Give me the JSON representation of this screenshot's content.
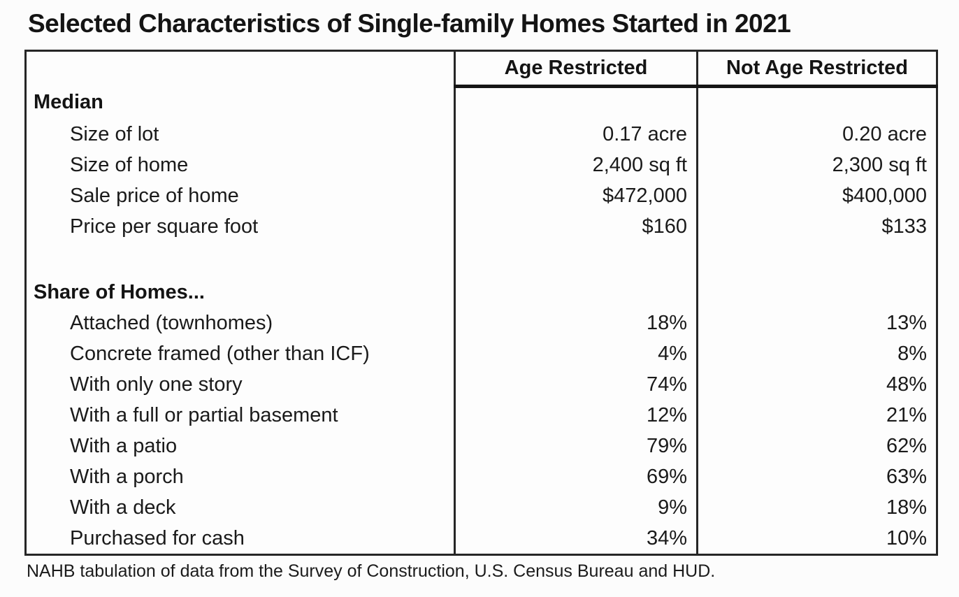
{
  "chart_data": {
    "type": "table",
    "title": "Selected Characteristics of Single-family Homes Started in 2021",
    "columns": [
      "",
      "Age Restricted",
      "Not Age Restricted"
    ],
    "rows": [
      {
        "kind": "section",
        "label": "Median",
        "age_restricted": "",
        "not_age_restricted": ""
      },
      {
        "kind": "item",
        "label": "Size of lot",
        "age_restricted": "0.17 acre",
        "not_age_restricted": "0.20 acre"
      },
      {
        "kind": "item",
        "label": "Size of home",
        "age_restricted": "2,400 sq ft",
        "not_age_restricted": "2,300 sq ft"
      },
      {
        "kind": "item",
        "label": "Sale price of home",
        "age_restricted": "$472,000",
        "not_age_restricted": "$400,000"
      },
      {
        "kind": "item",
        "label": "Price per square foot",
        "age_restricted": "$160",
        "not_age_restricted": "$133"
      },
      {
        "kind": "spacer",
        "label": "",
        "age_restricted": "",
        "not_age_restricted": ""
      },
      {
        "kind": "section",
        "label": "Share of Homes...",
        "age_restricted": "",
        "not_age_restricted": ""
      },
      {
        "kind": "item",
        "label": "Attached (townhomes)",
        "age_restricted": "18%",
        "not_age_restricted": "13%"
      },
      {
        "kind": "item",
        "label": "Concrete framed (other than ICF)",
        "age_restricted": "4%",
        "not_age_restricted": "8%"
      },
      {
        "kind": "item",
        "label": "With only one story",
        "age_restricted": "74%",
        "not_age_restricted": "48%"
      },
      {
        "kind": "item",
        "label": "With a full or partial basement",
        "age_restricted": "12%",
        "not_age_restricted": "21%"
      },
      {
        "kind": "item",
        "label": "With a patio",
        "age_restricted": "79%",
        "not_age_restricted": "62%"
      },
      {
        "kind": "item",
        "label": "With a porch",
        "age_restricted": "69%",
        "not_age_restricted": "63%"
      },
      {
        "kind": "item",
        "label": "With a deck",
        "age_restricted": "9%",
        "not_age_restricted": "18%"
      },
      {
        "kind": "item",
        "label": "Purchased for cash",
        "age_restricted": "34%",
        "not_age_restricted": "10%"
      }
    ],
    "source": "NAHB tabulation of data from the Survey of Construction, U.S. Census Bureau and HUD.",
    "layout": {
      "grid": "off",
      "header_rule": "thick line under value columns only"
    }
  },
  "colors": {
    "text": "#1a1a1a",
    "border": "#262626",
    "background": "#fcfcfc"
  }
}
